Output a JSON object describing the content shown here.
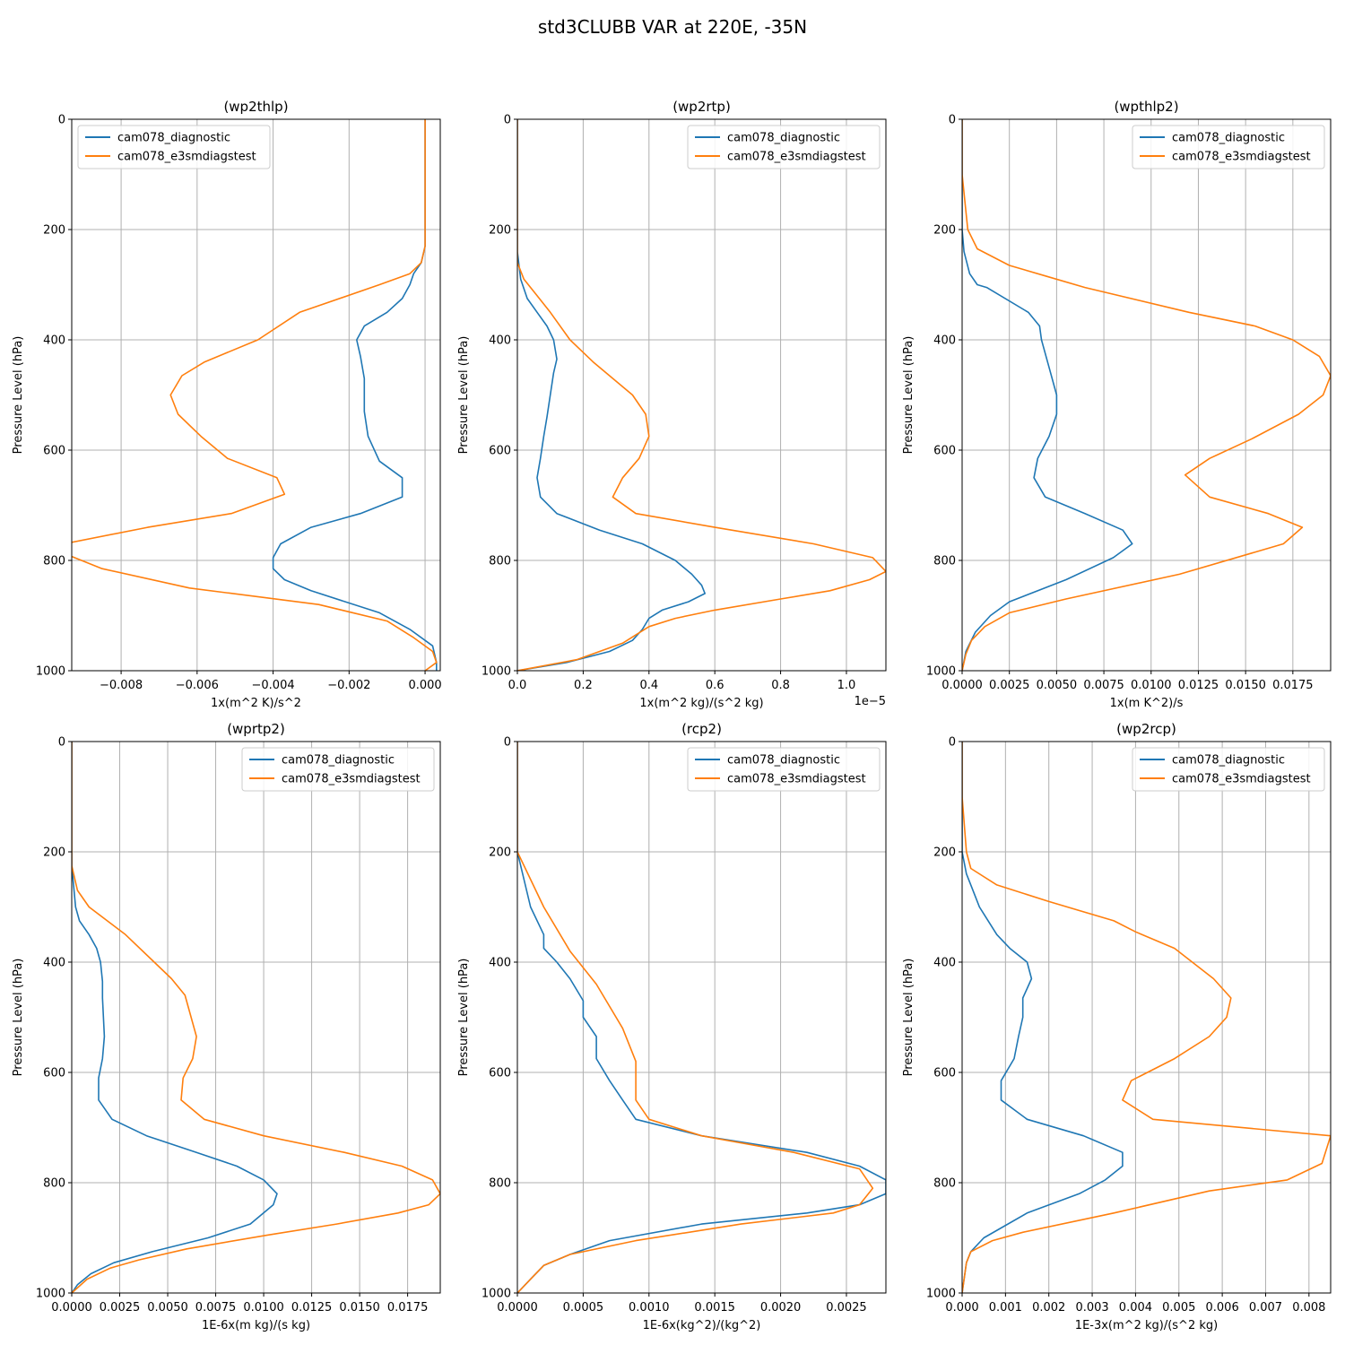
{
  "figure": {
    "title": "std3CLUBB VAR at 220E, -35N"
  },
  "colors": {
    "diagnostic": "#1f77b4",
    "e3smdiagstest": "#ff7f0e",
    "grid": "#b0b0b0"
  },
  "chart_data": [
    {
      "type": "line",
      "title": "(wp2thlp)",
      "xlabel": "1x(m^2 K)/s^2",
      "ylabel": "Pressure Level (hPa)",
      "xlim": [
        -0.0093,
        0.0004
      ],
      "ylim": [
        1000,
        0
      ],
      "x_ticks": [
        -0.008,
        -0.006,
        -0.004,
        -0.002,
        0.0
      ],
      "x_tick_labels": [
        "−0.008",
        "−0.006",
        "−0.004",
        "−0.002",
        "0.000"
      ],
      "y_ticks": [
        0,
        200,
        400,
        600,
        800,
        1000
      ],
      "y_tick_labels": [
        "0",
        "200",
        "400",
        "600",
        "800",
        "1000"
      ],
      "x_offset_label": "",
      "grid": true,
      "legend_position": "top-left",
      "series": [
        {
          "name": "cam078_diagnostic",
          "color": "#1f77b4",
          "x": [
            0.0,
            0.0,
            0.0,
            0.0,
            -0.0001,
            -0.0003,
            -0.0004,
            -0.0006,
            -0.001,
            -0.0016,
            -0.0018,
            -0.0017,
            -0.0016,
            -0.0016,
            -0.0015,
            -0.0012,
            -0.0006,
            -0.0006,
            -0.0017,
            -0.003,
            -0.0038,
            -0.004,
            -0.004,
            -0.0037,
            -0.003,
            -0.0012,
            -0.0004,
            0.0002,
            0.0003,
            0.0003
          ],
          "y": [
            0,
            100,
            200,
            230,
            260,
            280,
            300,
            325,
            350,
            375,
            400,
            430,
            470,
            530,
            575,
            620,
            650,
            685,
            715,
            740,
            770,
            795,
            815,
            835,
            855,
            895,
            925,
            955,
            985,
            1000
          ]
        },
        {
          "name": "cam078_e3smdiagstest",
          "color": "#ff7f0e",
          "x": [
            0.0,
            0.0,
            0.0,
            0.0,
            -0.0001,
            -0.0004,
            -0.0012,
            -0.0033,
            -0.0044,
            -0.0058,
            -0.0064,
            -0.0067,
            -0.0065,
            -0.0059,
            -0.0052,
            -0.0039,
            -0.0037,
            -0.0051,
            -0.0073,
            -0.0095,
            -0.0094,
            -0.0085,
            -0.0062,
            -0.0028,
            -0.001,
            -0.0003,
            0.0002,
            0.0003,
            0.0
          ],
          "y": [
            0,
            100,
            200,
            230,
            260,
            280,
            300,
            350,
            400,
            440,
            465,
            500,
            535,
            575,
            615,
            650,
            680,
            715,
            740,
            770,
            790,
            815,
            850,
            880,
            910,
            940,
            965,
            985,
            1000
          ]
        }
      ]
    },
    {
      "type": "line",
      "title": "(wp2rtp)",
      "xlabel": "1x(m^2 kg)/(s^2 kg)",
      "ylabel": "Pressure Level (hPa)",
      "xlim": [
        0,
        1.12
      ],
      "ylim": [
        1000,
        0
      ],
      "x_ticks": [
        0.0,
        0.2,
        0.4,
        0.6,
        0.8,
        1.0
      ],
      "x_tick_labels": [
        "0.0",
        "0.2",
        "0.4",
        "0.6",
        "0.8",
        "1.0"
      ],
      "y_ticks": [
        0,
        200,
        400,
        600,
        800,
        1000
      ],
      "y_tick_labels": [
        "0",
        "200",
        "400",
        "600",
        "800",
        "1000"
      ],
      "x_offset_label": "1e−5",
      "grid": true,
      "legend_position": "top-right",
      "series": [
        {
          "name": "cam078_diagnostic",
          "color": "#1f77b4",
          "x": [
            0.0,
            0.0,
            0.0,
            0.01,
            0.03,
            0.06,
            0.09,
            0.11,
            0.12,
            0.11,
            0.1,
            0.09,
            0.08,
            0.07,
            0.06,
            0.07,
            0.12,
            0.25,
            0.38,
            0.48,
            0.53,
            0.56,
            0.57,
            0.52,
            0.44,
            0.4,
            0.38,
            0.35,
            0.28,
            0.15,
            0.0
          ],
          "y": [
            0,
            100,
            240,
            290,
            325,
            350,
            375,
            400,
            435,
            460,
            500,
            540,
            575,
            615,
            650,
            685,
            715,
            745,
            770,
            800,
            825,
            845,
            860,
            875,
            890,
            905,
            925,
            945,
            965,
            985,
            1000
          ]
        },
        {
          "name": "cam078_e3smdiagstest",
          "color": "#ff7f0e",
          "x": [
            0.0,
            0.0,
            0.0,
            0.02,
            0.06,
            0.1,
            0.16,
            0.23,
            0.35,
            0.39,
            0.4,
            0.37,
            0.32,
            0.29,
            0.36,
            0.6,
            0.9,
            1.08,
            1.12,
            1.07,
            0.95,
            0.8,
            0.6,
            0.48,
            0.4,
            0.32,
            0.18,
            0.0
          ],
          "y": [
            0,
            100,
            260,
            290,
            320,
            350,
            400,
            440,
            500,
            535,
            575,
            615,
            650,
            685,
            715,
            740,
            770,
            795,
            820,
            835,
            855,
            870,
            890,
            905,
            920,
            950,
            980,
            1000
          ]
        }
      ]
    },
    {
      "type": "line",
      "title": "(wpthlp2)",
      "xlabel": "1x(m K^2)/s",
      "ylabel": "Pressure Level (hPa)",
      "xlim": [
        0,
        0.0195
      ],
      "ylim": [
        1000,
        0
      ],
      "x_ticks": [
        0.0,
        0.0025,
        0.005,
        0.0075,
        0.01,
        0.0125,
        0.015,
        0.0175
      ],
      "x_tick_labels": [
        "0.0000",
        "0.0025",
        "0.0050",
        "0.0075",
        "0.0100",
        "0.0125",
        "0.0150",
        "0.0175"
      ],
      "y_ticks": [
        0,
        200,
        400,
        600,
        800,
        1000
      ],
      "y_tick_labels": [
        "0",
        "200",
        "400",
        "600",
        "800",
        "1000"
      ],
      "x_offset_label": "",
      "grid": true,
      "legend_position": "top-right",
      "series": [
        {
          "name": "cam078_diagnostic",
          "color": "#1f77b4",
          "x": [
            0.0,
            0.0,
            0.0,
            0.0001,
            0.0004,
            0.0008,
            0.0013,
            0.0035,
            0.0041,
            0.0042,
            0.0046,
            0.005,
            0.005,
            0.0046,
            0.004,
            0.0038,
            0.0044,
            0.0065,
            0.0085,
            0.009,
            0.008,
            0.0055,
            0.0025,
            0.0015,
            0.0007,
            0.0002,
            0.0
          ],
          "y": [
            0,
            100,
            200,
            240,
            280,
            300,
            305,
            350,
            375,
            400,
            450,
            500,
            535,
            575,
            615,
            650,
            685,
            715,
            745,
            770,
            795,
            835,
            875,
            900,
            930,
            965,
            1000
          ]
        },
        {
          "name": "cam078_e3smdiagstest",
          "color": "#ff7f0e",
          "x": [
            0.0,
            0.0,
            0.0003,
            0.0008,
            0.0025,
            0.0045,
            0.0065,
            0.012,
            0.0155,
            0.0175,
            0.0189,
            0.0195,
            0.0191,
            0.0178,
            0.0153,
            0.0131,
            0.0118,
            0.0131,
            0.0162,
            0.018,
            0.017,
            0.0115,
            0.0055,
            0.0025,
            0.0012,
            0.0005,
            0.0002,
            0.0
          ],
          "y": [
            0,
            100,
            200,
            235,
            265,
            285,
            305,
            350,
            375,
            400,
            430,
            465,
            500,
            535,
            580,
            615,
            645,
            685,
            715,
            740,
            770,
            825,
            870,
            895,
            920,
            945,
            970,
            1000
          ]
        }
      ]
    },
    {
      "type": "line",
      "title": "(wprtp2)",
      "xlabel": "1E-6x(m kg)/(s kg)",
      "ylabel": "Pressure Level (hPa)",
      "xlim": [
        0,
        0.0192
      ],
      "ylim": [
        1000,
        0
      ],
      "x_ticks": [
        0.0,
        0.0025,
        0.005,
        0.0075,
        0.01,
        0.0125,
        0.015,
        0.0175
      ],
      "x_tick_labels": [
        "0.0000",
        "0.0025",
        "0.0050",
        "0.0075",
        "0.0100",
        "0.0125",
        "0.0150",
        "0.0175"
      ],
      "y_ticks": [
        0,
        200,
        400,
        600,
        800,
        1000
      ],
      "y_tick_labels": [
        "0",
        "200",
        "400",
        "600",
        "800",
        "1000"
      ],
      "x_offset_label": "",
      "grid": true,
      "legend_position": "top-right",
      "series": [
        {
          "name": "cam078_diagnostic",
          "color": "#1f77b4",
          "x": [
            0.0,
            0.0,
            0.0,
            0.0002,
            0.0004,
            0.0009,
            0.0013,
            0.0015,
            0.0016,
            0.0016,
            0.0017,
            0.0016,
            0.0014,
            0.0014,
            0.0021,
            0.0039,
            0.0065,
            0.0086,
            0.01,
            0.0107,
            0.0105,
            0.0093,
            0.0071,
            0.0042,
            0.0022,
            0.001,
            0.0003,
            0.0
          ],
          "y": [
            0,
            100,
            225,
            300,
            325,
            350,
            375,
            400,
            435,
            465,
            535,
            575,
            610,
            650,
            685,
            715,
            745,
            770,
            795,
            820,
            840,
            875,
            900,
            925,
            945,
            965,
            985,
            1000
          ]
        },
        {
          "name": "cam078_e3smdiagstest",
          "color": "#ff7f0e",
          "x": [
            0.0,
            0.0,
            0.0,
            0.0003,
            0.0009,
            0.0028,
            0.0043,
            0.0052,
            0.0059,
            0.0065,
            0.0063,
            0.0058,
            0.0057,
            0.0069,
            0.01,
            0.0142,
            0.0172,
            0.0188,
            0.0192,
            0.0186,
            0.017,
            0.0138,
            0.0102,
            0.006,
            0.0035,
            0.002,
            0.0008,
            0.0
          ],
          "y": [
            0,
            100,
            225,
            270,
            300,
            350,
            400,
            430,
            460,
            535,
            575,
            610,
            650,
            685,
            715,
            745,
            770,
            795,
            820,
            840,
            855,
            875,
            895,
            920,
            940,
            955,
            975,
            1000
          ]
        }
      ]
    },
    {
      "type": "line",
      "title": "(rcp2)",
      "xlabel": "1E-6x(kg^2)/(kg^2)",
      "ylabel": "Pressure Level (hPa)",
      "xlim": [
        0,
        0.0028
      ],
      "ylim": [
        1000,
        0
      ],
      "x_ticks": [
        0.0,
        0.0005,
        0.001,
        0.0015,
        0.002,
        0.0025
      ],
      "x_tick_labels": [
        "0.0000",
        "0.0005",
        "0.0010",
        "0.0015",
        "0.0020",
        "0.0025"
      ],
      "y_ticks": [
        0,
        200,
        400,
        600,
        800,
        1000
      ],
      "y_tick_labels": [
        "0",
        "200",
        "400",
        "600",
        "800",
        "1000"
      ],
      "x_offset_label": "",
      "grid": true,
      "legend_position": "top-right",
      "series": [
        {
          "name": "cam078_diagnostic",
          "color": "#1f77b4",
          "x": [
            0.0,
            0.0,
            0.0,
            0.0001,
            0.0002,
            0.0002,
            0.0003,
            0.0004,
            0.0005,
            0.0005,
            0.0006,
            0.0006,
            0.0007,
            0.0008,
            0.0009,
            0.0014,
            0.0022,
            0.0026,
            0.0028,
            0.0028,
            0.0026,
            0.0022,
            0.0014,
            0.0007,
            0.0004,
            0.0002,
            0.0001,
            0.0
          ],
          "y": [
            0,
            100,
            200,
            300,
            350,
            375,
            400,
            430,
            470,
            500,
            535,
            575,
            615,
            650,
            685,
            715,
            745,
            770,
            795,
            820,
            840,
            855,
            875,
            905,
            930,
            950,
            975,
            1000
          ]
        },
        {
          "name": "cam078_e3smdiagstest",
          "color": "#ff7f0e",
          "x": [
            0.0,
            0.0,
            0.0,
            0.0002,
            0.0004,
            0.0006,
            0.0008,
            0.0009,
            0.0009,
            0.0009,
            0.001,
            0.0014,
            0.0021,
            0.0026,
            0.0027,
            0.0026,
            0.0024,
            0.0017,
            0.0009,
            0.0004,
            0.0002,
            0.0001,
            0.0
          ],
          "y": [
            0,
            100,
            200,
            300,
            380,
            440,
            520,
            580,
            615,
            650,
            685,
            715,
            745,
            775,
            810,
            840,
            855,
            875,
            905,
            930,
            950,
            975,
            1000
          ]
        }
      ]
    },
    {
      "type": "line",
      "title": "(wp2rcp)",
      "xlabel": "1E-3x(m^2 kg)/(s^2 kg)",
      "ylabel": "Pressure Level (hPa)",
      "xlim": [
        0,
        0.0085
      ],
      "ylim": [
        1000,
        0
      ],
      "x_ticks": [
        0.0,
        0.001,
        0.002,
        0.003,
        0.004,
        0.005,
        0.006,
        0.007,
        0.008
      ],
      "x_tick_labels": [
        "0.000",
        "0.001",
        "0.002",
        "0.003",
        "0.004",
        "0.005",
        "0.006",
        "0.007",
        "0.008"
      ],
      "y_ticks": [
        0,
        200,
        400,
        600,
        800,
        1000
      ],
      "y_tick_labels": [
        "0",
        "200",
        "400",
        "600",
        "800",
        "1000"
      ],
      "x_offset_label": "",
      "grid": true,
      "legend_position": "top-right",
      "series": [
        {
          "name": "cam078_diagnostic",
          "color": "#1f77b4",
          "x": [
            0.0,
            0.0,
            0.0,
            0.0001,
            0.0002,
            0.0003,
            0.0004,
            0.0008,
            0.0011,
            0.0015,
            0.0016,
            0.0014,
            0.0014,
            0.0013,
            0.0012,
            0.0009,
            0.0009,
            0.0015,
            0.0028,
            0.0037,
            0.0037,
            0.0033,
            0.0027,
            0.0015,
            0.0005,
            0.0002,
            0.0001,
            0.0
          ],
          "y": [
            0,
            100,
            200,
            240,
            260,
            280,
            300,
            350,
            375,
            400,
            430,
            465,
            500,
            535,
            575,
            615,
            650,
            685,
            715,
            745,
            770,
            795,
            820,
            855,
            900,
            925,
            945,
            1000
          ]
        },
        {
          "name": "cam078_e3smdiagstest",
          "color": "#ff7f0e",
          "x": [
            0.0,
            0.0,
            0.0001,
            0.0002,
            0.0008,
            0.002,
            0.0035,
            0.004,
            0.0049,
            0.0058,
            0.0062,
            0.0061,
            0.0057,
            0.0049,
            0.0039,
            0.0037,
            0.0044,
            0.0085,
            0.0083,
            0.0075,
            0.0057,
            0.0035,
            0.0014,
            0.0007,
            0.0002,
            0.0001,
            0.0
          ],
          "y": [
            0,
            100,
            200,
            230,
            260,
            290,
            325,
            345,
            375,
            430,
            465,
            500,
            535,
            575,
            615,
            650,
            685,
            715,
            765,
            795,
            815,
            855,
            890,
            905,
            925,
            945,
            1000
          ]
        }
      ]
    }
  ]
}
